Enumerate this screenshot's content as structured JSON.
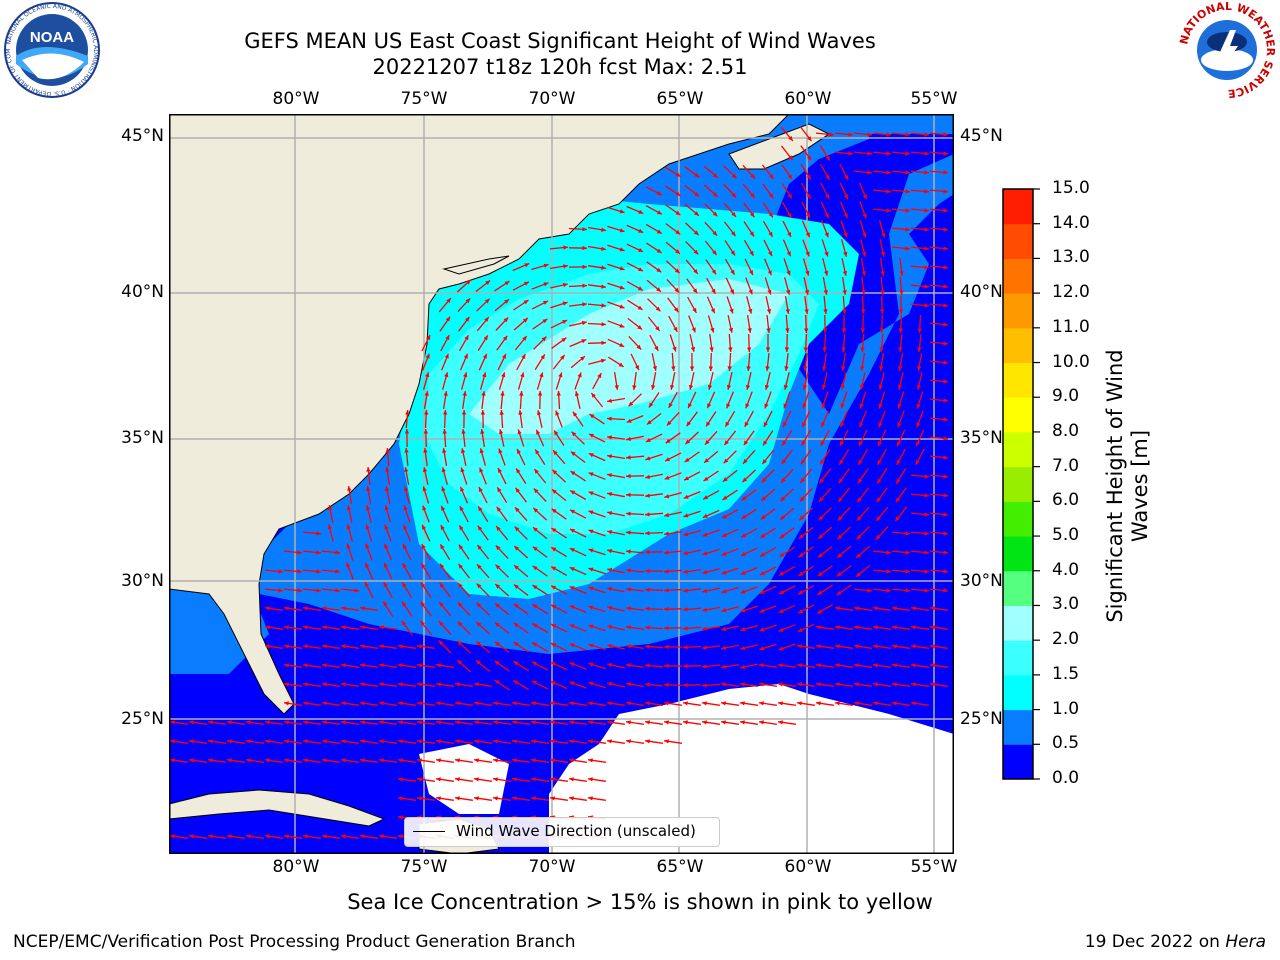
{
  "title": {
    "line1": "GEFS MEAN US East Coast Significant Height of Wind Waves",
    "line2": "20221207 t18z 120h fcst   Max: 2.51"
  },
  "map": {
    "lon_labels": [
      "80°W",
      "75°W",
      "70°W",
      "65°W",
      "60°W",
      "55°W"
    ],
    "lat_labels": [
      "45°N",
      "40°N",
      "35°N",
      "30°N",
      "25°N"
    ],
    "lon_range": [
      -85,
      -54.5
    ],
    "lat_range": [
      20.5,
      45.8
    ],
    "gridlines": true,
    "legend_label": "Wind Wave Direction (unscaled)",
    "arrow_color": "#ff0000",
    "land_color": "#efecdc"
  },
  "colorbar": {
    "label": "Significant Height of Wind Waves [m]",
    "ticks": [
      "0.0",
      "0.5",
      "1.0",
      "1.5",
      "2.0",
      "3.0",
      "4.0",
      "5.0",
      "6.0",
      "7.0",
      "8.0",
      "9.0",
      "10.0",
      "11.0",
      "12.0",
      "13.0",
      "14.0",
      "15.0"
    ],
    "colors": [
      "#0000ff",
      "#0a7cff",
      "#00ffff",
      "#3cffff",
      "#a0ffff",
      "#55ff7f",
      "#00e614",
      "#44ee00",
      "#99ee00",
      "#ccff00",
      "#ffff00",
      "#ffe600",
      "#ffbf00",
      "#ff9900",
      "#ff7300",
      "#ff4c00",
      "#ff1f00"
    ]
  },
  "note": "Sea Ice Concentration > 15% is shown in pink to yellow",
  "footer": {
    "left": "NCEP/EMC/Verification Post Processing Product Generation Branch",
    "right_date": "19 Dec 2022 on ",
    "right_machine": "Hera"
  },
  "logos": {
    "noaa_text": "NOAA",
    "noaa_ring": "NATIONAL OCEANIC AND ATMOSPHERIC ADMINISTRATION · U.S. DEPARTMENT OF COMMERCE",
    "nws_ring": "NATIONAL WEATHER SERVICE"
  }
}
